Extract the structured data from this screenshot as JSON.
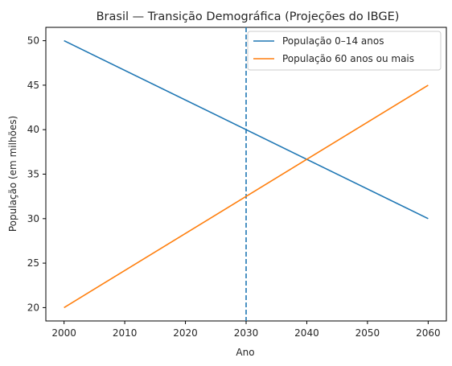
{
  "chart_data": {
    "type": "line",
    "title": "Brasil — Transição Demográfica (Projeções do IBGE)",
    "xlabel": "Ano",
    "ylabel": "População (em milhões)",
    "x": [
      2000,
      2060
    ],
    "xlim": [
      1997,
      2063
    ],
    "ylim": [
      18.5,
      51.5
    ],
    "xticks": [
      2000,
      2010,
      2020,
      2030,
      2040,
      2050,
      2060
    ],
    "yticks": [
      20,
      25,
      30,
      35,
      40,
      45,
      50
    ],
    "grid": false,
    "legend_position": "top-right",
    "series": [
      {
        "name": "População 0–14 anos",
        "color": "#1f77b4",
        "values": [
          50,
          30
        ]
      },
      {
        "name": "População 60 anos ou mais",
        "color": "#ff7f0e",
        "values": [
          20,
          45
        ]
      }
    ],
    "reference_line": {
      "orientation": "vertical",
      "x": 2030,
      "style": "dashed",
      "color": "#1f77b4"
    }
  }
}
